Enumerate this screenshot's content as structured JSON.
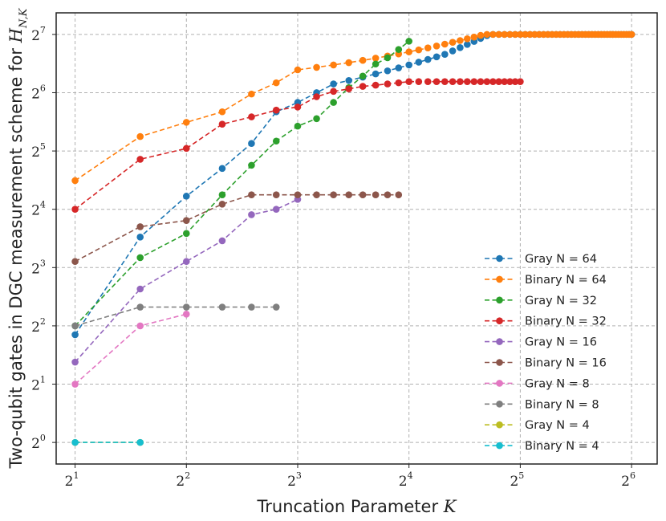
{
  "chart_data": {
    "type": "line",
    "x_scale": "log2",
    "y_scale": "log2",
    "xlabel_prefix": "Truncation Parameter ",
    "xlabel_var": "K",
    "ylabel_prefix": "Two-qubit gates in DGC measurement scheme for ",
    "ylabel_var": "H",
    "ylabel_sub": "N,K",
    "x_ticks": [
      {
        "value": 2,
        "base": "2",
        "exp": "1"
      },
      {
        "value": 4,
        "base": "2",
        "exp": "2"
      },
      {
        "value": 8,
        "base": "2",
        "exp": "3"
      },
      {
        "value": 16,
        "base": "2",
        "exp": "4"
      },
      {
        "value": 32,
        "base": "2",
        "exp": "5"
      },
      {
        "value": 64,
        "base": "2",
        "exp": "6"
      }
    ],
    "y_ticks": [
      {
        "value": 1,
        "base": "2",
        "exp": "0"
      },
      {
        "value": 2,
        "base": "2",
        "exp": "1"
      },
      {
        "value": 4,
        "base": "2",
        "exp": "2"
      },
      {
        "value": 8,
        "base": "2",
        "exp": "3"
      },
      {
        "value": 16,
        "base": "2",
        "exp": "4"
      },
      {
        "value": 32,
        "base": "2",
        "exp": "5"
      },
      {
        "value": 64,
        "base": "2",
        "exp": "6"
      },
      {
        "value": 128,
        "base": "2",
        "exp": "7"
      }
    ],
    "xlim_log2": [
      0.83,
      6.23
    ],
    "ylim_log2": [
      -0.37,
      7.37
    ],
    "grid": true,
    "legend_position": "lower-right",
    "series": [
      {
        "name": "Gray N = 64",
        "color": "#1f77b4",
        "kind": "gray64"
      },
      {
        "name": "Binary N = 64",
        "color": "#ff7f0e",
        "kind": "binary64"
      },
      {
        "name": "Gray N = 32",
        "color": "#2ca02c",
        "x": [
          2,
          3,
          4,
          5,
          6,
          7,
          8,
          9,
          10,
          11,
          12,
          13,
          14,
          15,
          16
        ],
        "y": [
          4,
          9,
          12,
          19,
          27,
          36,
          43,
          47,
          57,
          68,
          78,
          90,
          97,
          107,
          118
        ]
      },
      {
        "name": "Binary N = 32",
        "color": "#d62728",
        "kind": "binary32",
        "x": [
          2,
          3,
          4,
          5,
          6,
          7,
          8,
          9,
          10,
          11,
          12,
          13,
          14,
          15,
          16
        ],
        "y": [
          16,
          29,
          33,
          44,
          48,
          52,
          54,
          61,
          65,
          67,
          69,
          70,
          71,
          72,
          73
        ]
      },
      {
        "name": "Gray N = 16",
        "color": "#9467bd",
        "x": [
          2,
          3,
          4,
          5,
          6,
          7,
          8
        ],
        "y": [
          2.6,
          6.2,
          8.6,
          11,
          15,
          16,
          18
        ]
      },
      {
        "name": "Binary N = 16",
        "color": "#8c564b",
        "x": [
          2,
          3,
          4,
          5,
          6,
          7,
          8,
          9,
          10,
          11,
          12,
          13,
          14,
          15
        ],
        "y": [
          8.6,
          13,
          14,
          17,
          19,
          19,
          19,
          19,
          19,
          19,
          19,
          19,
          19,
          19
        ]
      },
      {
        "name": "Gray N = 8",
        "color": "#e377c2",
        "x": [
          2,
          3,
          4
        ],
        "y": [
          2,
          4,
          4.6
        ]
      },
      {
        "name": "Binary N = 8",
        "color": "#7f7f7f",
        "x": [
          2,
          3,
          4,
          5,
          6,
          7
        ],
        "y": [
          4,
          5,
          5,
          5,
          5,
          5
        ]
      },
      {
        "name": "Gray N = 4",
        "color": "#bcbd22",
        "x": [
          2,
          3
        ],
        "y": [
          1,
          1
        ]
      },
      {
        "name": "Binary N = 4",
        "color": "#17becf",
        "x": [
          2,
          3
        ],
        "y": [
          1,
          1
        ]
      }
    ]
  }
}
